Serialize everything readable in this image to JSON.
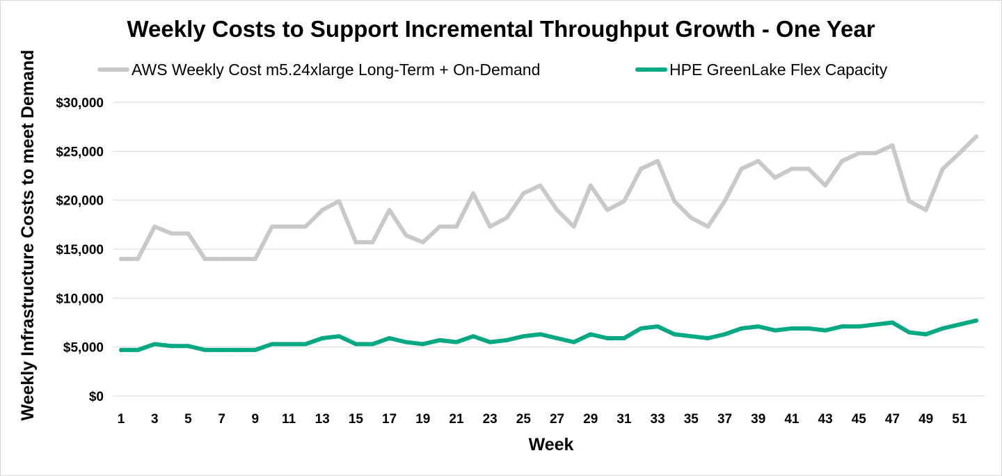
{
  "chart_data": {
    "type": "line",
    "title": "Weekly Costs to Support Incremental Throughput Growth - One Year",
    "xlabel": "Week",
    "ylabel": "Weekly Infrastructure Costs to meet Demand",
    "ylim": [
      0,
      30000
    ],
    "yticks": [
      "$0",
      "$5,000",
      "$10,000",
      "$15,000",
      "$20,000",
      "$25,000",
      "$30,000"
    ],
    "ytick_values": [
      0,
      5000,
      10000,
      15000,
      20000,
      25000,
      30000
    ],
    "xticks": [
      "1",
      "3",
      "5",
      "7",
      "9",
      "11",
      "13",
      "15",
      "17",
      "19",
      "21",
      "23",
      "25",
      "27",
      "29",
      "31",
      "33",
      "35",
      "37",
      "39",
      "41",
      "43",
      "45",
      "47",
      "49",
      "51"
    ],
    "xtick_values": [
      1,
      3,
      5,
      7,
      9,
      11,
      13,
      15,
      17,
      19,
      21,
      23,
      25,
      27,
      29,
      31,
      33,
      35,
      37,
      39,
      41,
      43,
      45,
      47,
      49,
      51
    ],
    "x": [
      1,
      2,
      3,
      4,
      5,
      6,
      7,
      8,
      9,
      10,
      11,
      12,
      13,
      14,
      15,
      16,
      17,
      18,
      19,
      20,
      21,
      22,
      23,
      24,
      25,
      26,
      27,
      28,
      29,
      30,
      31,
      32,
      33,
      34,
      35,
      36,
      37,
      38,
      39,
      40,
      41,
      42,
      43,
      44,
      45,
      46,
      47,
      48,
      49,
      50,
      51,
      52
    ],
    "grid": true,
    "legend_position": "top",
    "series": [
      {
        "name": "AWS Weekly Cost m5.24xlarge Long-Term + On-Demand",
        "color": "#c8cac9",
        "values": [
          14000,
          14000,
          17300,
          16600,
          16600,
          14000,
          14000,
          14000,
          14000,
          17300,
          17300,
          17300,
          19000,
          19900,
          15700,
          15700,
          19000,
          16400,
          15700,
          17300,
          17300,
          20700,
          17300,
          18200,
          20700,
          21500,
          19000,
          17300,
          21500,
          19000,
          19900,
          23200,
          24000,
          19900,
          18200,
          17300,
          19900,
          23200,
          24000,
          22300,
          23200,
          23200,
          21500,
          24000,
          24800,
          24800,
          25600,
          19900,
          19000,
          23200,
          24800,
          26500
        ]
      },
      {
        "name": "HPE GreenLake Flex Capacity",
        "color": "#01a982",
        "values": [
          4700,
          4700,
          5300,
          5100,
          5100,
          4700,
          4700,
          4700,
          4700,
          5300,
          5300,
          5300,
          5900,
          6100,
          5300,
          5300,
          5900,
          5500,
          5300,
          5700,
          5500,
          6100,
          5500,
          5700,
          6100,
          6300,
          5900,
          5500,
          6300,
          5900,
          5900,
          6900,
          7100,
          6300,
          6100,
          5900,
          6300,
          6900,
          7100,
          6700,
          6900,
          6900,
          6700,
          7100,
          7100,
          7300,
          7500,
          6500,
          6300,
          6900,
          7300,
          7700
        ]
      }
    ]
  }
}
